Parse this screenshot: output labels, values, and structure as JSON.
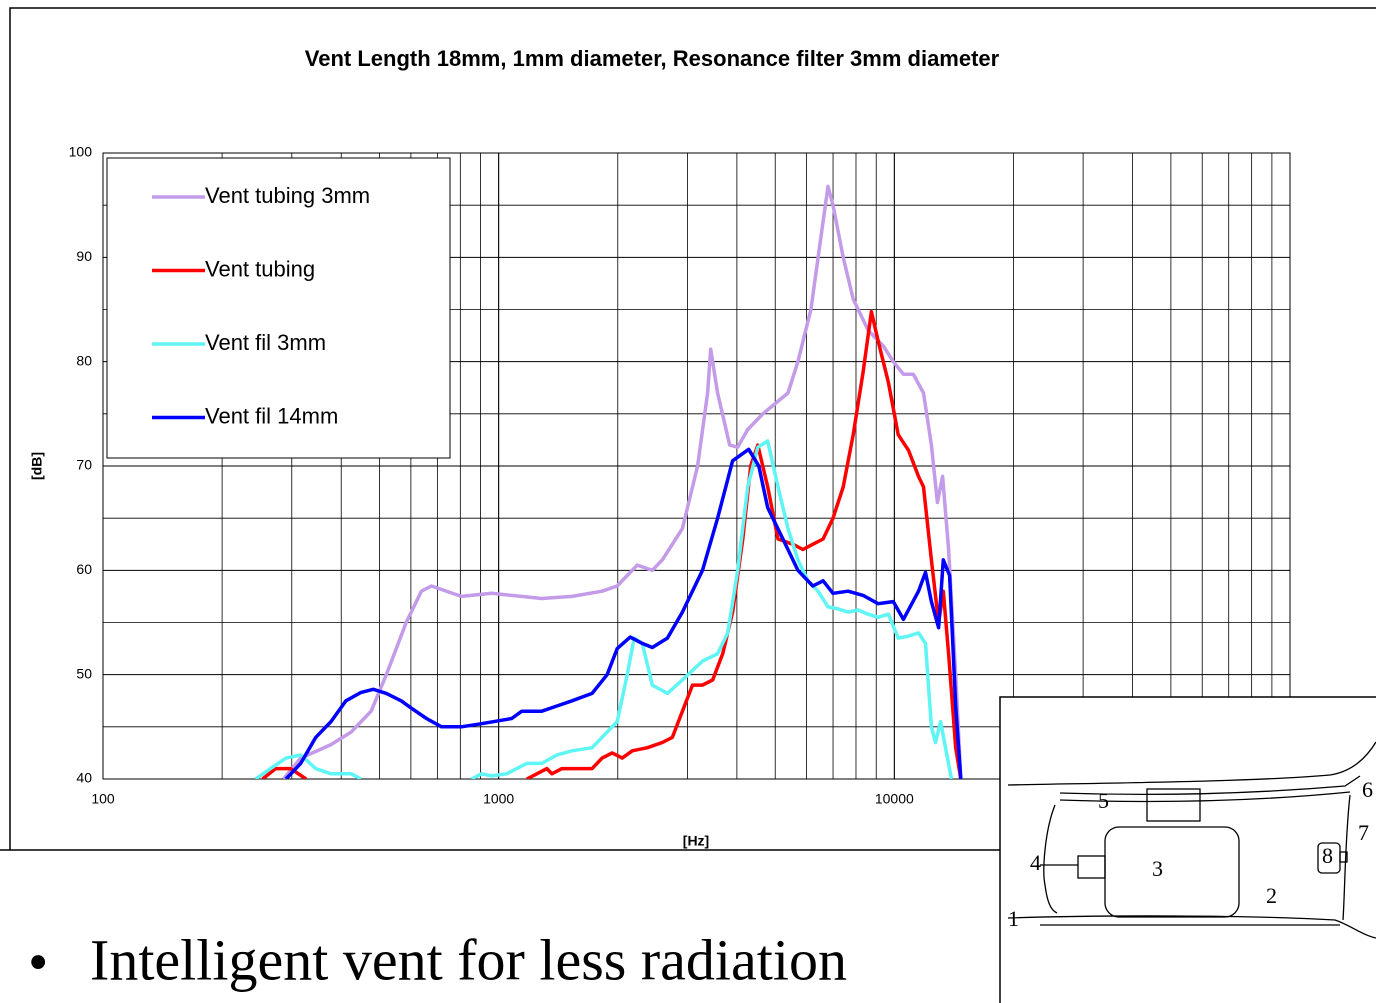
{
  "chart_data": {
    "type": "line",
    "title": "Vent Length 18mm, 1mm diameter,  Resonance filter 3mm diameter",
    "x_label": "[Hz]",
    "y_label": "[dB]",
    "xscale": "log",
    "xlim": [
      100,
      100000
    ],
    "xticks": [
      100,
      1000,
      10000
    ],
    "ylim": [
      40,
      100
    ],
    "yticks": [
      40,
      50,
      60,
      70,
      80,
      90,
      100
    ],
    "grid": true,
    "minor_grid": true,
    "legend": "upper left",
    "series": [
      {
        "name": "Vent tubing 3mm",
        "color": "#c39be8",
        "x": [
          286,
          316,
          377,
          424,
          476,
          520,
          584,
          638,
          676,
          805,
          960,
          1285,
          1532,
          1826,
          1993,
          2240,
          2445,
          2592,
          2913,
          3183,
          3374,
          3434,
          3575,
          3836,
          4020,
          4260,
          4653,
          5387,
          5705,
          6154,
          6528,
          6798,
          7000,
          7425,
          7870,
          8590,
          9376,
          9940,
          10540,
          11170,
          11850,
          12410,
          12850,
          13240,
          13710,
          14290,
          14720
        ],
        "values": [
          40,
          42,
          43.3,
          44.5,
          46.5,
          50,
          55,
          58,
          58.5,
          57.5,
          57.8,
          57.3,
          57.5,
          58,
          58.5,
          60.5,
          60,
          61,
          64,
          70,
          77,
          81.2,
          77,
          72,
          71.8,
          73.5,
          75,
          77,
          80,
          85,
          92,
          96.8,
          95,
          90,
          86,
          83,
          81.5,
          80,
          78.8,
          78.8,
          77,
          72,
          66.5,
          69,
          62,
          50,
          40
        ]
      },
      {
        "name": "Vent tubing",
        "color": "#ff0000",
        "x": [
          253,
          273,
          298,
          326,
          600,
          1178,
          1249,
          1324,
          1363,
          1445,
          1578,
          1722,
          1826,
          1936,
          2052,
          2177,
          2377,
          2592,
          2748,
          2913,
          3090,
          3275,
          3474,
          3683,
          3902,
          4140,
          4335,
          4518,
          4786,
          5081,
          5546,
          5875,
          6223,
          6607,
          7000,
          7425,
          7870,
          8337,
          8750,
          9100,
          9660,
          10230,
          10860,
          11510,
          11850,
          12410,
          12940,
          13300,
          13710,
          14290,
          14720
        ],
        "values": [
          40,
          41,
          41,
          40,
          null,
          40,
          40.5,
          41,
          40.5,
          41,
          41,
          41,
          42,
          42.5,
          42,
          42.7,
          43,
          43.5,
          44,
          46.5,
          49,
          49,
          49.5,
          52,
          56,
          63,
          70,
          72,
          68,
          63,
          62.5,
          62,
          62.5,
          63,
          65,
          68,
          73,
          79,
          84.8,
          82,
          78,
          73,
          71.5,
          69,
          68,
          61,
          55,
          58,
          52,
          43,
          40
        ]
      },
      {
        "name": "Vent fil 3mm",
        "color": "#5ff5f5",
        "x": [
          243,
          265,
          290,
          316,
          345,
          377,
          424,
          449,
          600,
          854,
          905,
          960,
          1048,
          1111,
          1178,
          1285,
          1403,
          1532,
          1722,
          1826,
          1993,
          2113,
          2201,
          2307,
          2445,
          2669,
          2913,
          3275,
          3575,
          3791,
          4020,
          4260,
          4518,
          4786,
          5081,
          5387,
          5705,
          6049,
          6413,
          6798,
          7210,
          7642,
          8101,
          8590,
          9100,
          9660,
          10230,
          10860,
          11510,
          11990,
          12410,
          12710,
          13090,
          13470,
          13950
        ],
        "values": [
          40,
          41,
          42,
          42.3,
          41,
          40.5,
          40.5,
          40,
          null,
          40,
          40.5,
          40.3,
          40.5,
          41,
          41.5,
          41.5,
          42.3,
          42.7,
          43,
          44,
          45.5,
          50,
          53.5,
          53,
          49,
          48.2,
          49.5,
          51.3,
          52,
          54,
          60,
          68,
          71.8,
          72.4,
          68,
          64,
          61,
          59,
          58,
          56.5,
          56.3,
          56,
          56.2,
          55.8,
          55.5,
          55.8,
          53.5,
          53.7,
          54,
          53,
          45,
          43.5,
          45.5,
          43,
          40
        ]
      },
      {
        "name": "Vent fil 14mm",
        "color": "#0000ff",
        "x": [
          290,
          316,
          345,
          377,
          411,
          449,
          482,
          520,
          567,
          601,
          657,
          717,
          805,
          905,
          1079,
          1144,
          1285,
          1403,
          1532,
          1722,
          1880,
          1993,
          2150,
          2307,
          2445,
          2669,
          2913,
          3275,
          3575,
          3902,
          4285,
          4545,
          4786,
          5228,
          5705,
          6223,
          6607,
          7000,
          7642,
          8337,
          9100,
          9940,
          10540,
          11510,
          11990,
          12410,
          12940,
          13300,
          13790,
          14290,
          14720
        ],
        "values": [
          40,
          41.5,
          44,
          45.5,
          47.5,
          48.3,
          48.6,
          48.2,
          47.5,
          46.8,
          45.8,
          45,
          45,
          45.3,
          45.8,
          46.5,
          46.5,
          47,
          47.5,
          48.2,
          50,
          52.5,
          53.6,
          53,
          52.6,
          53.5,
          56,
          60,
          65,
          70.5,
          71.6,
          70,
          66,
          63,
          60,
          58.5,
          59,
          57.8,
          58,
          57.6,
          56.8,
          57,
          55.3,
          58,
          59.8,
          57,
          54.5,
          61,
          59.5,
          47,
          40
        ]
      }
    ]
  },
  "bullets": [
    "Intelligent vent for less radiation"
  ],
  "diagram": {
    "labels": [
      "1",
      "2",
      "3",
      "4",
      "5",
      "6",
      "7",
      "8"
    ]
  }
}
